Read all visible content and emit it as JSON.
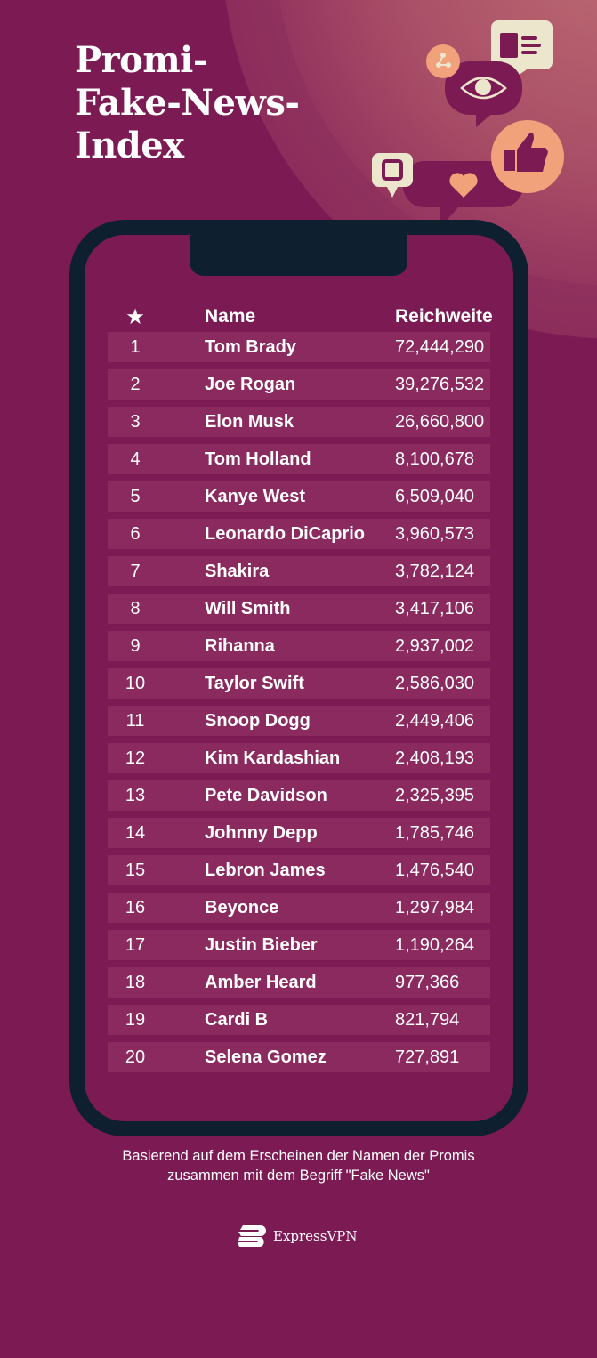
{
  "title": [
    "Promi-",
    "Fake-News-",
    "Index"
  ],
  "table": {
    "headers": {
      "rank_icon": "star-icon",
      "name": "Name",
      "reach": "Reichweite"
    },
    "rows": [
      {
        "rank": "1",
        "name": "Tom Brady",
        "reach": "72,444,290"
      },
      {
        "rank": "2",
        "name": "Joe Rogan",
        "reach": "39,276,532"
      },
      {
        "rank": "3",
        "name": "Elon Musk",
        "reach": "26,660,800"
      },
      {
        "rank": "4",
        "name": "Tom Holland",
        "reach": "8,100,678"
      },
      {
        "rank": "5",
        "name": "Kanye West",
        "reach": "6,509,040"
      },
      {
        "rank": "6",
        "name": "Leonardo DiCaprio",
        "reach": "3,960,573"
      },
      {
        "rank": "7",
        "name": "Shakira",
        "reach": "3,782,124"
      },
      {
        "rank": "8",
        "name": "Will Smith",
        "reach": "3,417,106"
      },
      {
        "rank": "9",
        "name": "Rihanna",
        "reach": "2,937,002"
      },
      {
        "rank": "10",
        "name": "Taylor Swift",
        "reach": "2,586,030"
      },
      {
        "rank": "11",
        "name": "Snoop Dogg",
        "reach": "2,449,406"
      },
      {
        "rank": "12",
        "name": "Kim Kardashian",
        "reach": "2,408,193"
      },
      {
        "rank": "13",
        "name": "Pete Davidson",
        "reach": "2,325,395"
      },
      {
        "rank": "14",
        "name": "Johnny Depp",
        "reach": "1,785,746"
      },
      {
        "rank": "15",
        "name": "Lebron James",
        "reach": "1,476,540"
      },
      {
        "rank": "16",
        "name": "Beyonce",
        "reach": "1,297,984"
      },
      {
        "rank": "17",
        "name": "Justin Bieber",
        "reach": "1,190,264"
      },
      {
        "rank": "18",
        "name": "Amber Heard",
        "reach": "977,366"
      },
      {
        "rank": "19",
        "name": "Cardi B",
        "reach": "821,794"
      },
      {
        "rank": "20",
        "name": "Selena Gomez",
        "reach": "727,891"
      }
    ]
  },
  "footnote": [
    "Basierend auf dem Erscheinen der Namen der Promis",
    "zusammen mit dem Begriff \"Fake News\""
  ],
  "brand": "ExpressVPN",
  "colors": {
    "background": "#7c1a54",
    "phone_frame": "#0e2030",
    "row": "#8a2a5e",
    "accent_peach": "#f2a27a",
    "cream": "#ece6cc"
  }
}
